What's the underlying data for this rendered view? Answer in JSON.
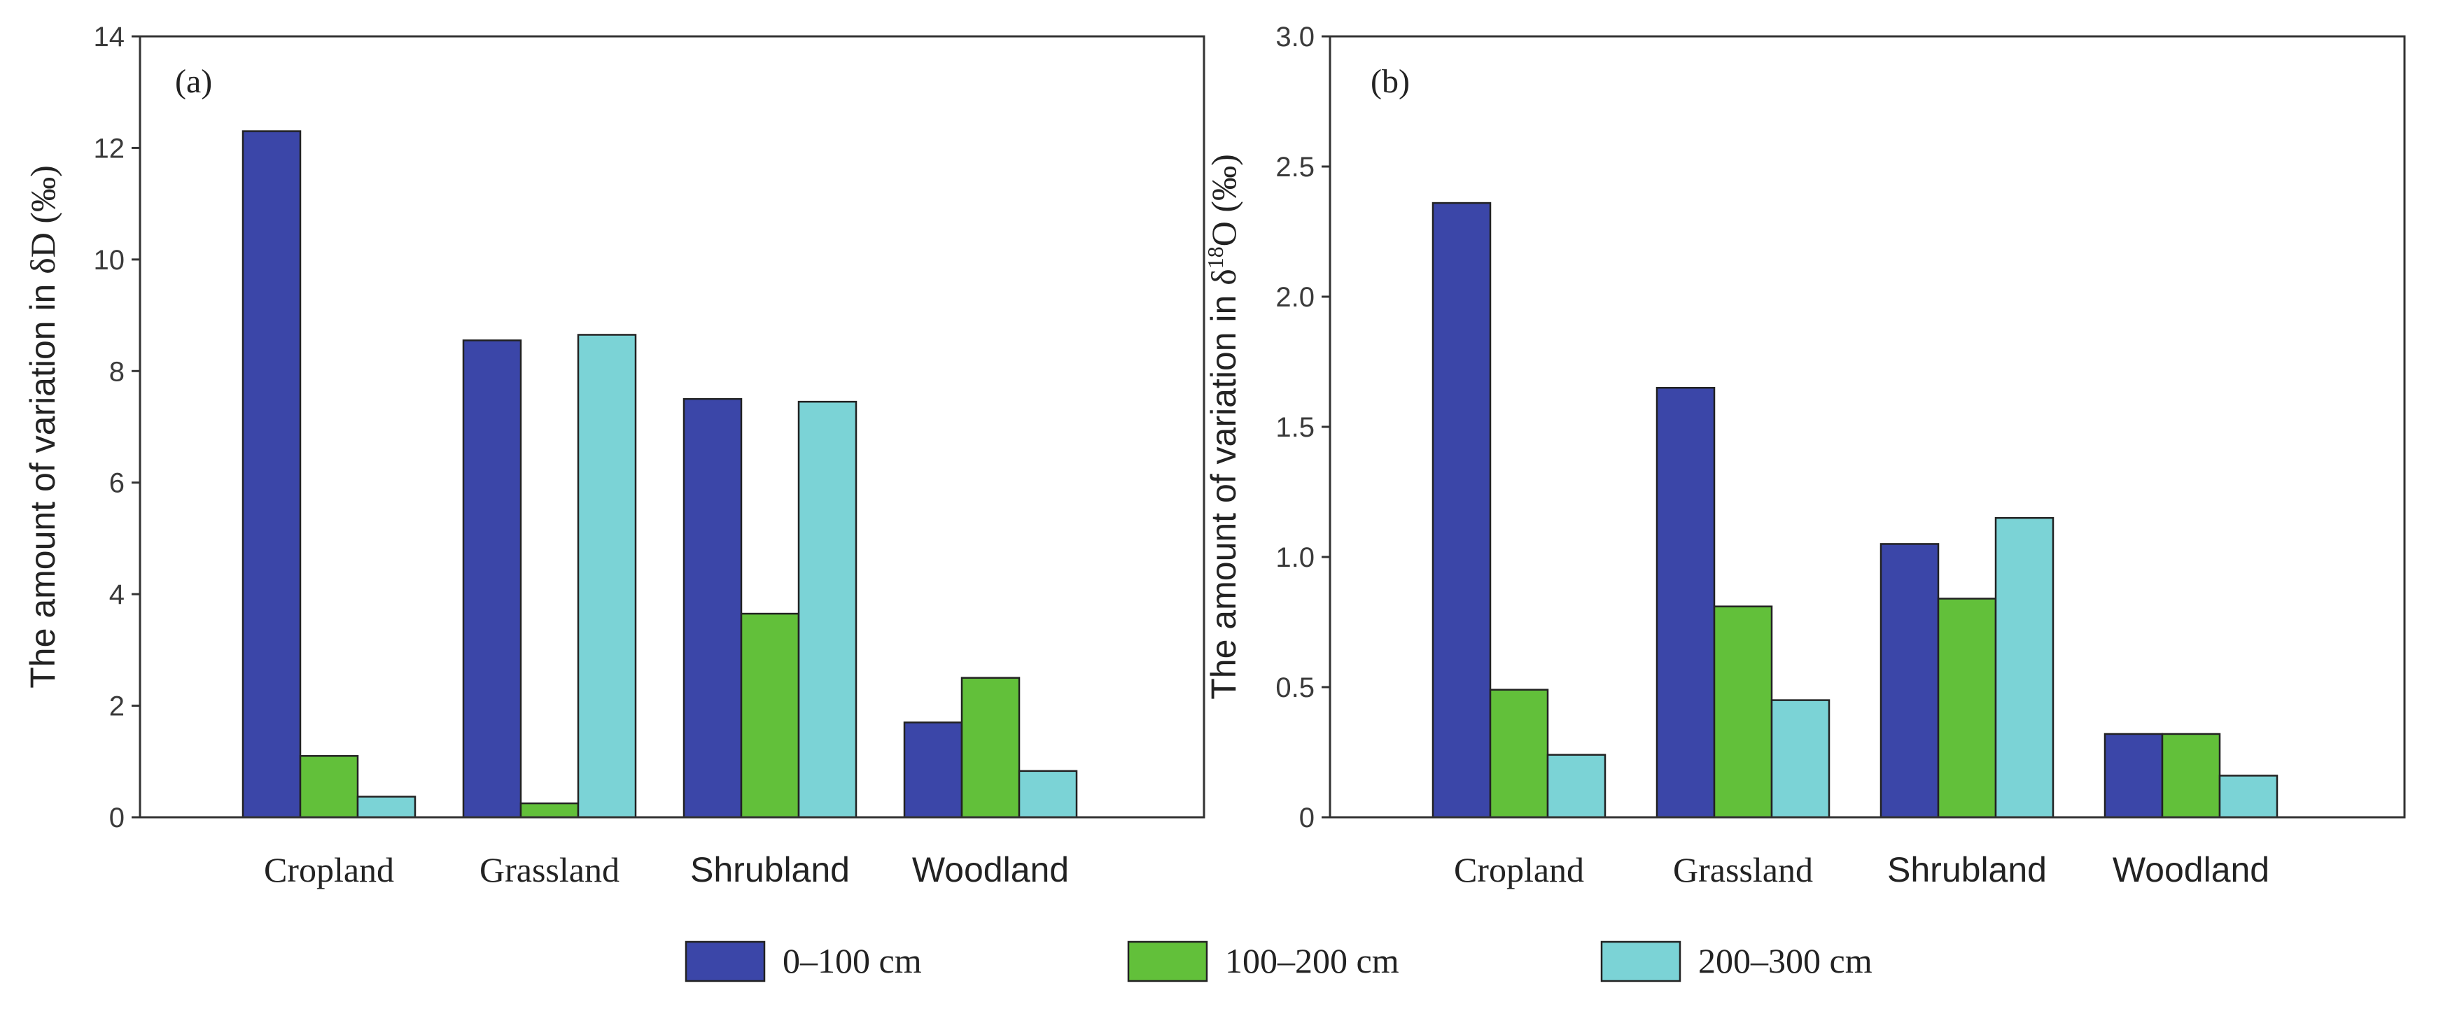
{
  "colors": {
    "s0": "#3b46a8",
    "s1": "#62c03a",
    "s2": "#7bd3d6"
  },
  "chart_data": [
    {
      "type": "bar",
      "panel_label": "(a)",
      "categories": [
        "Cropland",
        "Grassland",
        "Shrubland",
        "Woodland"
      ],
      "series": [
        {
          "name": "0–100 cm",
          "values": [
            12.3,
            8.55,
            7.5,
            1.7
          ]
        },
        {
          "name": "100–200 cm",
          "values": [
            1.1,
            0.25,
            3.65,
            2.5
          ]
        },
        {
          "name": "200–300 cm",
          "values": [
            0.37,
            8.65,
            7.45,
            0.83
          ]
        }
      ],
      "ylabel_pre": "The amount of variation in ",
      "ylabel_symbol": "δD",
      "ylabel_unit": " (‰)",
      "ylim": [
        0,
        14
      ],
      "yticks": [
        0,
        2,
        4,
        6,
        8,
        10,
        12,
        14
      ],
      "ytick_labels": [
        "0",
        "2",
        "4",
        "6",
        "8",
        "10",
        "12",
        "14"
      ]
    },
    {
      "type": "bar",
      "panel_label": "(b)",
      "categories": [
        "Cropland",
        "Grassland",
        "Shrubland",
        "Woodland"
      ],
      "series": [
        {
          "name": "0–100 cm",
          "values": [
            2.36,
            1.65,
            1.05,
            0.32
          ]
        },
        {
          "name": "100–200 cm",
          "values": [
            0.49,
            0.81,
            0.84,
            0.32
          ]
        },
        {
          "name": "200–300 cm",
          "values": [
            0.24,
            0.45,
            1.15,
            0.16
          ]
        }
      ],
      "ylabel_pre": "The amount of variation in ",
      "ylabel_symbol": "δ",
      "ylabel_sup": "18",
      "ylabel_symbol2": "O",
      "ylabel_unit": " (‰)",
      "ylim": [
        0,
        3.0
      ],
      "yticks": [
        0,
        0.5,
        1.0,
        1.5,
        2.0,
        2.5,
        3.0
      ],
      "ytick_labels": [
        "0",
        "0.5",
        "1.0",
        "1.5",
        "2.0",
        "2.5",
        "3.0"
      ]
    }
  ],
  "legend": [
    {
      "label": "0–100 cm"
    },
    {
      "label": "100–200 cm"
    },
    {
      "label": "200–300 cm"
    }
  ]
}
